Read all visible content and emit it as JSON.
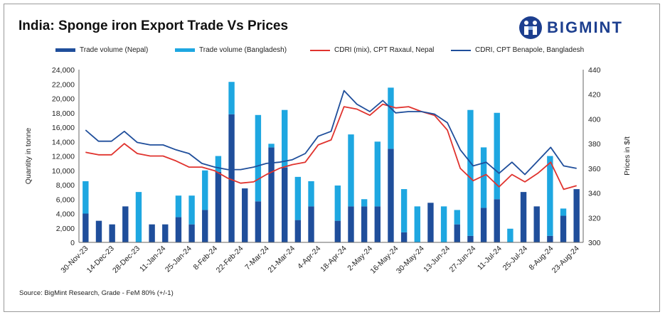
{
  "title": "India: Sponge iron Export Trade Vs Prices",
  "brand": "BIGMINT",
  "source": "Source: BigMint Research, Grade - FeM 80% (+/-1)",
  "colors": {
    "nepal_bar": "#1f4e9b",
    "bangladesh_bar": "#1ea7e1",
    "raxaul_line": "#e0332e",
    "benapole_line": "#1f4e9b"
  },
  "chart_data": {
    "type": "bar+line",
    "title": "India: Sponge iron Export Trade Vs Prices",
    "ylabel": "Quantity in tonne",
    "y2label": "Prices in $/t",
    "ylim": [
      0,
      24000
    ],
    "y2lim": [
      300,
      440
    ],
    "yticks": [
      "0",
      "2,000",
      "4,000",
      "6,000",
      "8,000",
      "10,000",
      "12,000",
      "14,000",
      "16,000",
      "18,000",
      "20,000",
      "22,000",
      "24,000"
    ],
    "y2ticks": [
      "300",
      "320",
      "340",
      "360",
      "380",
      "400",
      "420",
      "440"
    ],
    "xtick_labels": [
      "30-Nov-23",
      "14-Dec-23",
      "28-Dec-23",
      "11-Jan-24",
      "25-Jan-24",
      "8-Feb-24",
      "22-Feb-24",
      "7-Mar-24",
      "21-Mar-24",
      "4-Apr-24",
      "18-Apr-24",
      "2-May-24",
      "16-May-24",
      "30-May-24",
      "13-Jun-24",
      "27-Jun-24",
      "11-Jul-24",
      "25-Jul-24",
      "8-Aug-24",
      "23-Aug-24"
    ],
    "series": [
      {
        "name": "Trade volume (Nepal)",
        "kind": "bar",
        "stack": "volume",
        "values": [
          4000,
          3000,
          2500,
          5000,
          0,
          2500,
          2500,
          3500,
          2500,
          4500,
          9800,
          17800,
          7500,
          5700,
          13200,
          10400,
          3100,
          5000,
          0,
          3000,
          5000,
          5000,
          5000,
          13000,
          1400,
          0,
          5500,
          0,
          2500,
          900,
          4800,
          6000,
          0,
          7000,
          5000,
          900,
          3700,
          7400
        ]
      },
      {
        "name": "Trade volume (Bangladesh)",
        "kind": "bar",
        "stack": "volume",
        "values": [
          4500,
          0,
          0,
          0,
          7000,
          0,
          0,
          3000,
          4000,
          5500,
          2200,
          4500,
          0,
          12000,
          500,
          8000,
          6000,
          3500,
          0,
          4900,
          10000,
          1000,
          9000,
          8500,
          6000,
          5000,
          0,
          5000,
          2000,
          17500,
          8400,
          12000,
          1900,
          0,
          0,
          11100,
          1000,
          0
        ]
      },
      {
        "name": "CDRI (mix), CPT Raxaul, Nepal",
        "kind": "line",
        "axis": "right",
        "values": [
          373,
          371,
          371,
          380,
          372,
          370,
          370,
          366,
          361,
          361,
          358,
          352,
          348,
          349,
          355,
          360,
          363,
          365,
          379,
          383,
          410,
          408,
          403,
          412,
          409,
          410,
          406,
          403,
          391,
          360,
          350,
          355,
          345,
          355,
          349,
          356,
          365,
          343,
          346
        ]
      },
      {
        "name": "CDRI, CPT Benapole, Bangladesh",
        "kind": "line",
        "axis": "right",
        "values": [
          391,
          382,
          382,
          390,
          381,
          379,
          379,
          375,
          372,
          364,
          361,
          359,
          359,
          361,
          364,
          365,
          367,
          372,
          386,
          390,
          423,
          412,
          406,
          415,
          405,
          406,
          406,
          404,
          397,
          375,
          362,
          365,
          356,
          365,
          355,
          366,
          377,
          362,
          360
        ]
      }
    ],
    "legend": [
      "Trade volume (Nepal)",
      "Trade volume (Bangladesh)",
      "CDRI (mix), CPT Raxaul, Nepal",
      "CDRI, CPT Benapole, Bangladesh"
    ],
    "legend_position": "top"
  }
}
